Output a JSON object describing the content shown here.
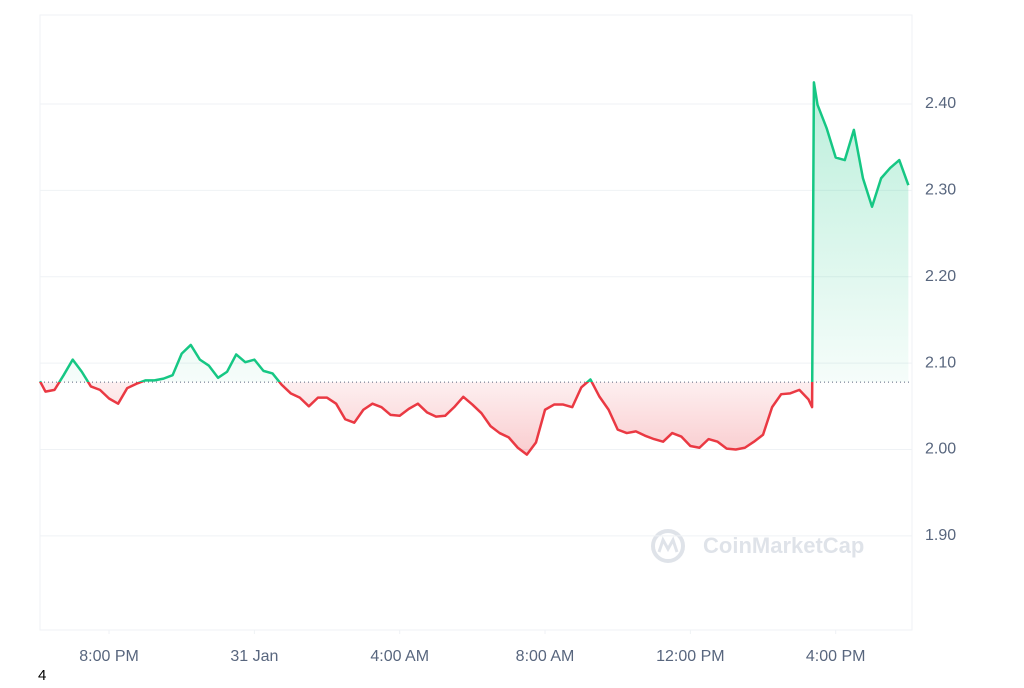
{
  "chart_data": {
    "type": "line",
    "watermark": "CoinMarketCap",
    "footnote": "4",
    "color_up": "#16c784",
    "color_down": "#ea3943",
    "baseline": 2.078,
    "grid": true,
    "xlim": [
      18.1,
      42.1
    ],
    "ylim": [
      1.791,
      2.503
    ],
    "xticks": [
      {
        "value": 20,
        "label": "8:00 PM"
      },
      {
        "value": 24,
        "label": "31 Jan"
      },
      {
        "value": 28,
        "label": "4:00 AM"
      },
      {
        "value": 32,
        "label": "8:00 AM"
      },
      {
        "value": 36,
        "label": "12:00 PM"
      },
      {
        "value": 40,
        "label": "4:00 PM"
      }
    ],
    "yticks": [
      {
        "value": 1.9,
        "label": "1.90"
      },
      {
        "value": 2.0,
        "label": "2.00"
      },
      {
        "value": 2.1,
        "label": "2.10"
      },
      {
        "value": 2.2,
        "label": "2.20"
      },
      {
        "value": 2.3,
        "label": "2.30"
      },
      {
        "value": 2.4,
        "label": "2.40"
      }
    ],
    "x": [
      18.1,
      18.25,
      18.5,
      18.75,
      19.0,
      19.25,
      19.5,
      19.75,
      20.0,
      20.25,
      20.5,
      20.75,
      21.0,
      21.25,
      21.5,
      21.75,
      22.0,
      22.25,
      22.5,
      22.75,
      23.0,
      23.25,
      23.5,
      23.75,
      24.0,
      24.25,
      24.5,
      24.75,
      25.0,
      25.25,
      25.5,
      25.75,
      26.0,
      26.25,
      26.5,
      26.75,
      27.0,
      27.25,
      27.5,
      27.75,
      28.0,
      28.25,
      28.5,
      28.75,
      29.0,
      29.25,
      29.5,
      29.75,
      30.0,
      30.25,
      30.5,
      30.75,
      31.0,
      31.25,
      31.5,
      31.75,
      32.0,
      32.25,
      32.5,
      32.75,
      33.0,
      33.25,
      33.5,
      33.75,
      34.0,
      34.25,
      34.5,
      34.75,
      35.0,
      35.25,
      35.5,
      35.75,
      36.0,
      36.25,
      36.5,
      36.75,
      37.0,
      37.25,
      37.5,
      37.75,
      38.0,
      38.25,
      38.5,
      38.75,
      39.0,
      39.25,
      39.35,
      39.4,
      39.5,
      39.75,
      40.0,
      40.25,
      40.5,
      40.75,
      41.0,
      41.25,
      41.5,
      41.75,
      42.0
    ],
    "values": [
      2.079,
      2.067,
      2.069,
      2.086,
      2.104,
      2.09,
      2.073,
      2.069,
      2.059,
      2.053,
      2.071,
      2.076,
      2.08,
      2.08,
      2.082,
      2.086,
      2.111,
      2.121,
      2.104,
      2.097,
      2.083,
      2.09,
      2.11,
      2.101,
      2.104,
      2.091,
      2.088,
      2.075,
      2.065,
      2.06,
      2.05,
      2.06,
      2.06,
      2.053,
      2.035,
      2.031,
      2.046,
      2.053,
      2.049,
      2.04,
      2.039,
      2.047,
      2.053,
      2.043,
      2.038,
      2.039,
      2.049,
      2.061,
      2.052,
      2.042,
      2.027,
      2.019,
      2.014,
      2.002,
      1.994,
      2.008,
      2.046,
      2.052,
      2.052,
      2.049,
      2.072,
      2.081,
      2.061,
      2.046,
      2.023,
      2.019,
      2.021,
      2.016,
      2.012,
      2.009,
      2.019,
      2.015,
      2.004,
      2.002,
      2.012,
      2.009,
      2.001,
      2.0,
      2.002,
      2.009,
      2.017,
      2.049,
      2.064,
      2.065,
      2.069,
      2.058,
      2.049,
      2.425,
      2.399,
      2.372,
      2.338,
      2.335,
      2.37,
      2.314,
      2.281,
      2.314,
      2.326,
      2.335,
      2.306
    ]
  }
}
